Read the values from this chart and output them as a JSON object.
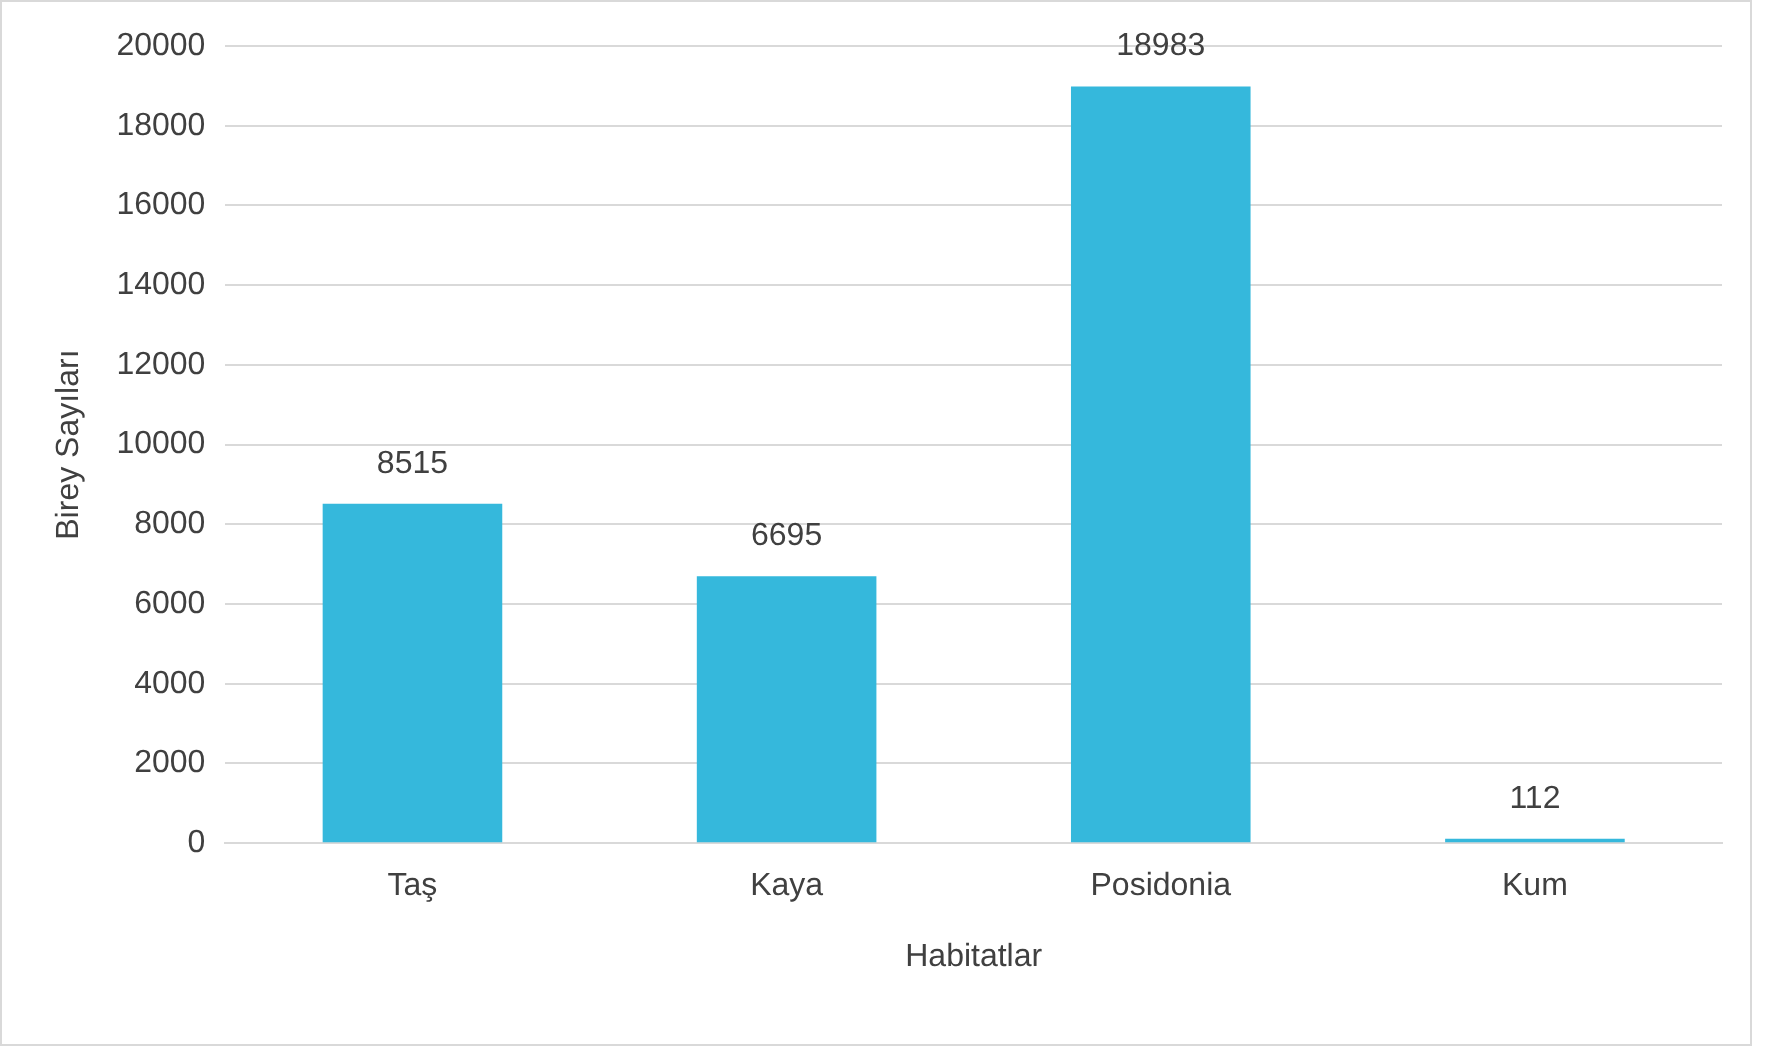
{
  "chart_data": {
    "type": "bar",
    "xlabel": "Habitatlar",
    "ylabel": "Birey Sayıları",
    "categories": [
      "Taş",
      "Kaya",
      "Posidonia",
      "Kum"
    ],
    "values": [
      8515,
      6695,
      18983,
      112
    ],
    "color": "#35b8dc",
    "ylim": [
      0,
      20000
    ],
    "yticks": [
      0,
      2000,
      4000,
      6000,
      8000,
      10000,
      12000,
      14000,
      16000,
      18000,
      20000
    ],
    "grid": "y",
    "legend": false,
    "data_labels": true
  }
}
